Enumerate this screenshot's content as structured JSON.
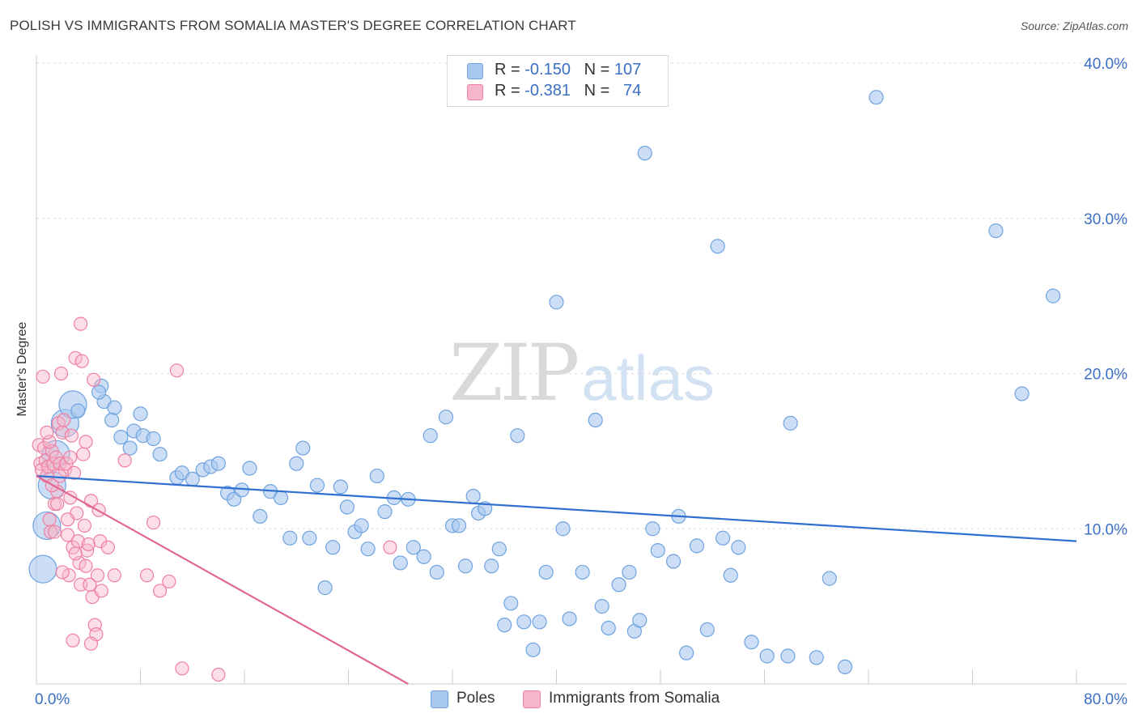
{
  "header": {
    "title": "POLISH VS IMMIGRANTS FROM SOMALIA MASTER'S DEGREE CORRELATION CHART",
    "source": "Source: ZipAtlas.com"
  },
  "watermark": {
    "zip": "ZIP",
    "atlas": "atlas"
  },
  "legend_top": {
    "rows": [
      {
        "r_label": "R = ",
        "r_value": "-0.150",
        "n_label": "N = ",
        "n_value": "107",
        "color": "#a9c8ee"
      },
      {
        "r_label": "R = ",
        "r_value": "-0.381",
        "n_label": "N = ",
        "n_value": "74",
        "color": "#f6b6c9"
      }
    ]
  },
  "legend_bottom": [
    {
      "label": "Poles",
      "color": "#a9c8ee"
    },
    {
      "label": "Immigrants from Somalia",
      "color": "#f6b6c9"
    }
  ],
  "chart_data": {
    "type": "scatter",
    "title": "POLISH VS IMMIGRANTS FROM SOMALIA MASTER'S DEGREE CORRELATION CHART",
    "xlabel": "",
    "ylabel": "Master's Degree",
    "xlim": [
      0,
      80
    ],
    "ylim": [
      0,
      40
    ],
    "x_tick_labels": [
      {
        "value": 0,
        "label": "0.0%"
      },
      {
        "value": 80,
        "label": "80.0%"
      }
    ],
    "y_tick_labels": [
      {
        "value": 10,
        "label": "10.0%"
      },
      {
        "value": 20,
        "label": "20.0%"
      },
      {
        "value": 30,
        "label": "30.0%"
      },
      {
        "value": 40,
        "label": "40.0%"
      }
    ],
    "grid": "horizontal dashed",
    "legend": "top-center and bottom",
    "series": [
      {
        "name": "Poles",
        "color": "#6fa3e0",
        "fill": "#a9c8ee",
        "trend": {
          "x": [
            0,
            80
          ],
          "y": [
            13.4,
            9.2
          ]
        },
        "points": [
          [
            0.5,
            7.4
          ],
          [
            0.8,
            10.2
          ],
          [
            1.2,
            12.8
          ],
          [
            1.5,
            14.8
          ],
          [
            2.2,
            16.8
          ],
          [
            2.8,
            18.0
          ],
          [
            3.2,
            17.6
          ],
          [
            5.0,
            19.2
          ],
          [
            5.2,
            18.2
          ],
          [
            4.8,
            18.8
          ],
          [
            6.0,
            17.8
          ],
          [
            5.8,
            17.0
          ],
          [
            6.5,
            15.9
          ],
          [
            7.2,
            15.2
          ],
          [
            7.5,
            16.3
          ],
          [
            8.0,
            17.4
          ],
          [
            8.2,
            16.0
          ],
          [
            9.0,
            15.8
          ],
          [
            9.5,
            14.8
          ],
          [
            10.8,
            13.3
          ],
          [
            11.2,
            13.6
          ],
          [
            12.0,
            13.2
          ],
          [
            12.8,
            13.8
          ],
          [
            13.4,
            14.0
          ],
          [
            14.0,
            14.2
          ],
          [
            14.7,
            12.3
          ],
          [
            15.2,
            11.9
          ],
          [
            15.8,
            12.5
          ],
          [
            16.4,
            13.9
          ],
          [
            17.2,
            10.8
          ],
          [
            18.0,
            12.4
          ],
          [
            18.8,
            12.0
          ],
          [
            19.5,
            9.4
          ],
          [
            20.0,
            14.2
          ],
          [
            20.5,
            15.2
          ],
          [
            21.0,
            9.4
          ],
          [
            21.6,
            12.8
          ],
          [
            22.2,
            6.2
          ],
          [
            22.8,
            8.8
          ],
          [
            23.4,
            12.7
          ],
          [
            23.9,
            11.4
          ],
          [
            24.5,
            9.8
          ],
          [
            25.0,
            10.2
          ],
          [
            25.5,
            8.7
          ],
          [
            26.2,
            13.4
          ],
          [
            26.8,
            11.1
          ],
          [
            27.5,
            12.0
          ],
          [
            28.0,
            7.8
          ],
          [
            28.6,
            11.9
          ],
          [
            29.0,
            8.8
          ],
          [
            29.8,
            8.2
          ],
          [
            30.3,
            16.0
          ],
          [
            30.8,
            7.2
          ],
          [
            31.5,
            17.2
          ],
          [
            32.0,
            10.2
          ],
          [
            32.5,
            10.2
          ],
          [
            33.0,
            7.6
          ],
          [
            33.6,
            12.1
          ],
          [
            34.0,
            11.0
          ],
          [
            34.5,
            11.3
          ],
          [
            35.0,
            7.6
          ],
          [
            35.6,
            8.7
          ],
          [
            36.0,
            3.8
          ],
          [
            36.5,
            5.2
          ],
          [
            37.0,
            16.0
          ],
          [
            37.5,
            4.0
          ],
          [
            38.2,
            2.2
          ],
          [
            38.7,
            4.0
          ],
          [
            39.2,
            7.2
          ],
          [
            40.0,
            24.6
          ],
          [
            40.5,
            10.0
          ],
          [
            41.0,
            4.2
          ],
          [
            42.0,
            7.2
          ],
          [
            43.0,
            17.0
          ],
          [
            43.5,
            5.0
          ],
          [
            44.0,
            3.6
          ],
          [
            44.8,
            6.4
          ],
          [
            45.6,
            7.2
          ],
          [
            46.0,
            3.4
          ],
          [
            46.4,
            4.1
          ],
          [
            46.8,
            34.2
          ],
          [
            47.4,
            10.0
          ],
          [
            47.8,
            8.6
          ],
          [
            49.0,
            7.9
          ],
          [
            49.4,
            10.8
          ],
          [
            50.0,
            2.0
          ],
          [
            50.8,
            8.9
          ],
          [
            51.6,
            3.5
          ],
          [
            52.4,
            28.2
          ],
          [
            52.8,
            9.4
          ],
          [
            53.4,
            7.0
          ],
          [
            54.0,
            8.8
          ],
          [
            55.0,
            2.7
          ],
          [
            56.2,
            1.8
          ],
          [
            57.8,
            1.8
          ],
          [
            58.0,
            16.8
          ],
          [
            60.0,
            1.7
          ],
          [
            61.0,
            6.8
          ],
          [
            62.2,
            1.1
          ],
          [
            64.6,
            37.8
          ],
          [
            73.8,
            29.2
          ],
          [
            75.8,
            18.7
          ],
          [
            78.2,
            25.0
          ]
        ],
        "big_points": [
          [
            0.5,
            7.4
          ],
          [
            0.8,
            10.2
          ],
          [
            1.2,
            12.8
          ],
          [
            1.5,
            14.8
          ],
          [
            2.2,
            16.8
          ],
          [
            2.8,
            18.0
          ]
        ]
      },
      {
        "name": "Immigrants from Somalia",
        "color": "#ef7fa3",
        "fill": "#f6b6c9",
        "trend": {
          "x": [
            0,
            28.6
          ],
          "y": [
            13.4,
            0.0
          ]
        },
        "points": [
          [
            0.2,
            15.4
          ],
          [
            0.3,
            14.2
          ],
          [
            0.4,
            13.8
          ],
          [
            0.5,
            19.8
          ],
          [
            0.6,
            15.2
          ],
          [
            0.7,
            14.4
          ],
          [
            0.8,
            13.4
          ],
          [
            0.9,
            14.0
          ],
          [
            1.0,
            10.6
          ],
          [
            1.1,
            9.8
          ],
          [
            1.2,
            15.0
          ],
          [
            1.3,
            14.2
          ],
          [
            1.4,
            11.6
          ],
          [
            1.5,
            14.6
          ],
          [
            1.6,
            12.4
          ],
          [
            1.7,
            16.8
          ],
          [
            1.8,
            14.2
          ],
          [
            1.9,
            20.0
          ],
          [
            2.0,
            16.2
          ],
          [
            2.1,
            17.0
          ],
          [
            2.2,
            13.8
          ],
          [
            2.3,
            14.2
          ],
          [
            2.4,
            9.6
          ],
          [
            2.5,
            7.0
          ],
          [
            2.6,
            12.0
          ],
          [
            2.7,
            16.0
          ],
          [
            2.8,
            8.8
          ],
          [
            2.9,
            13.6
          ],
          [
            3.0,
            21.0
          ],
          [
            3.1,
            11.0
          ],
          [
            3.2,
            9.2
          ],
          [
            3.3,
            7.8
          ],
          [
            3.4,
            6.4
          ],
          [
            3.5,
            20.8
          ],
          [
            3.6,
            14.8
          ],
          [
            3.7,
            10.2
          ],
          [
            3.8,
            15.6
          ],
          [
            3.9,
            8.6
          ],
          [
            4.0,
            9.0
          ],
          [
            4.1,
            6.4
          ],
          [
            4.2,
            11.8
          ],
          [
            4.3,
            5.6
          ],
          [
            4.4,
            19.6
          ],
          [
            4.5,
            3.8
          ],
          [
            4.6,
            3.2
          ],
          [
            4.7,
            7.0
          ],
          [
            4.8,
            11.2
          ],
          [
            4.9,
            9.2
          ],
          [
            5.0,
            6.0
          ],
          [
            5.5,
            8.8
          ],
          [
            6.0,
            7.0
          ],
          [
            6.8,
            14.4
          ],
          [
            8.5,
            7.0
          ],
          [
            9.0,
            10.4
          ],
          [
            9.5,
            6.0
          ],
          [
            10.2,
            6.6
          ],
          [
            10.8,
            20.2
          ],
          [
            11.2,
            1.0
          ],
          [
            14.0,
            0.6
          ],
          [
            27.2,
            8.8
          ],
          [
            3.4,
            23.2
          ],
          [
            1.6,
            11.6
          ],
          [
            2.0,
            7.2
          ],
          [
            2.8,
            2.8
          ],
          [
            1.0,
            15.6
          ],
          [
            0.8,
            16.2
          ],
          [
            1.4,
            9.8
          ],
          [
            3.8,
            7.6
          ],
          [
            2.4,
            10.6
          ],
          [
            4.2,
            2.6
          ],
          [
            1.2,
            12.8
          ],
          [
            1.8,
            13.4
          ],
          [
            2.6,
            14.6
          ],
          [
            3.0,
            8.4
          ]
        ]
      }
    ]
  }
}
